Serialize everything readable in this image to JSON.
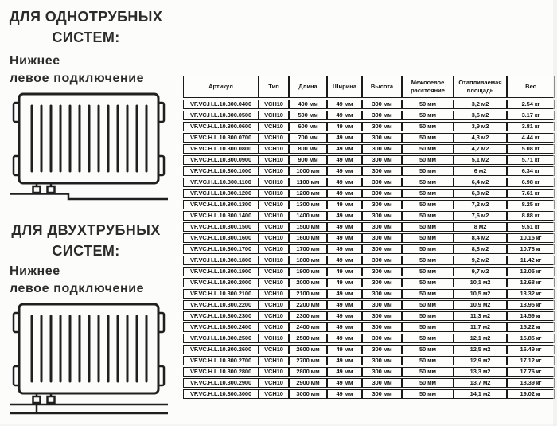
{
  "page": {
    "background": "#fcfcfb",
    "text_color": "#2b2b2b",
    "table_border_color": "#1a1a1a"
  },
  "sidebar": {
    "single_pipe": {
      "heading": "ДЛЯ ОДНОТРУБНЫХ СИСТЕМ:",
      "connection_line1": "Нижнее",
      "connection_line2": "левое подключение",
      "diagram_icon": "radiator-bottom-left-single-pipe-icon"
    },
    "two_pipe": {
      "heading": "ДЛЯ ДВУХТРУБНЫХ СИСТЕМ:",
      "connection_line1": "Нижнее",
      "connection_line2": "левое подключение",
      "diagram_icon": "radiator-bottom-left-two-pipe-icon"
    }
  },
  "table": {
    "headers": [
      "Артикул",
      "Тип",
      "Длина",
      "Ширина",
      "Высота",
      "Межосевое расстояние",
      "Отапливаемая площадь",
      "Вес"
    ],
    "rows": [
      [
        "VF.VC.H.L.10.300.0400",
        "VCH10",
        "400 мм",
        "49 мм",
        "300 мм",
        "50 мм",
        "3,2 м2",
        "2.54 кг"
      ],
      [
        "VF.VC.H.L.10.300.0500",
        "VCH10",
        "500 мм",
        "49 мм",
        "300 мм",
        "50 мм",
        "3,6 м2",
        "3.17 кг"
      ],
      [
        "VF.VC.H.L.10.300.0600",
        "VCH10",
        "600 мм",
        "49 мм",
        "300 мм",
        "50 мм",
        "3,9 м2",
        "3.81 кг"
      ],
      [
        "VF.VC.H.L.10.300.0700",
        "VCH10",
        "700 мм",
        "49 мм",
        "300 мм",
        "50 мм",
        "4,3 м2",
        "4.44 кг"
      ],
      [
        "VF.VC.H.L.10.300.0800",
        "VCH10",
        "800 мм",
        "49 мм",
        "300 мм",
        "50 мм",
        "4,7 м2",
        "5.08 кг"
      ],
      [
        "VF.VC.H.L.10.300.0900",
        "VCH10",
        "900 мм",
        "49 мм",
        "300 мм",
        "50 мм",
        "5,1 м2",
        "5.71 кг"
      ],
      [
        "VF.VC.H.L.10.300.1000",
        "VCH10",
        "1000 мм",
        "49 мм",
        "300 мм",
        "50 мм",
        "6 м2",
        "6.34 кг"
      ],
      [
        "VF.VC.H.L.10.300.1100",
        "VCH10",
        "1100 мм",
        "49 мм",
        "300 мм",
        "50 мм",
        "6,4 м2",
        "6.98 кг"
      ],
      [
        "VF.VC.H.L.10.300.1200",
        "VCH10",
        "1200 мм",
        "49 мм",
        "300 мм",
        "50 мм",
        "6,8 м2",
        "7.61 кг"
      ],
      [
        "VF.VC.H.L.10.300.1300",
        "VCH10",
        "1300 мм",
        "49 мм",
        "300 мм",
        "50 мм",
        "7,2 м2",
        "8.25 кг"
      ],
      [
        "VF.VC.H.L.10.300.1400",
        "VCH10",
        "1400 мм",
        "49 мм",
        "300 мм",
        "50 мм",
        "7,6 м2",
        "8.88 кг"
      ],
      [
        "VF.VC.H.L.10.300.1500",
        "VCH10",
        "1500 мм",
        "49 мм",
        "300 мм",
        "50 мм",
        "8 м2",
        "9.51 кг"
      ],
      [
        "VF.VC.H.L.10.300.1600",
        "VCH10",
        "1600 мм",
        "49 мм",
        "300 мм",
        "50 мм",
        "8,4 м2",
        "10.15 кг"
      ],
      [
        "VF.VC.H.L.10.300.1700",
        "VCH10",
        "1700 мм",
        "49 мм",
        "300 мм",
        "50 мм",
        "8,8 м2",
        "10.78 кг"
      ],
      [
        "VF.VC.H.L.10.300.1800",
        "VCH10",
        "1800 мм",
        "49 мм",
        "300 мм",
        "50 мм",
        "9,2 м2",
        "11.42 кг"
      ],
      [
        "VF.VC.H.L.10.300.1900",
        "VCH10",
        "1900 мм",
        "49 мм",
        "300 мм",
        "50 мм",
        "9,7 м2",
        "12.05 кг"
      ],
      [
        "VF.VC.H.L.10.300.2000",
        "VCH10",
        "2000 мм",
        "49 мм",
        "300 мм",
        "50 мм",
        "10,1 м2",
        "12.68 кг"
      ],
      [
        "VF.VC.H.L.10.300.2100",
        "VCH10",
        "2100 мм",
        "49 мм",
        "300 мм",
        "50 мм",
        "10,5 м2",
        "13.32 кг"
      ],
      [
        "VF.VC.H.L.10.300.2200",
        "VCH10",
        "2200 мм",
        "49 мм",
        "300 мм",
        "50 мм",
        "10,9 м2",
        "13.95 кг"
      ],
      [
        "VF.VC.H.L.10.300.2300",
        "VCH10",
        "2300 мм",
        "49 мм",
        "300 мм",
        "50 мм",
        "11,3 м2",
        "14.59 кг"
      ],
      [
        "VF.VC.H.L.10.300.2400",
        "VCH10",
        "2400 мм",
        "49 мм",
        "300 мм",
        "50 мм",
        "11,7 м2",
        "15.22 кг"
      ],
      [
        "VF.VC.H.L.10.300.2500",
        "VCH10",
        "2500 мм",
        "49 мм",
        "300 мм",
        "50 мм",
        "12,1 м2",
        "15.85 кг"
      ],
      [
        "VF.VC.H.L.10.300.2600",
        "VCH10",
        "2600 мм",
        "49 мм",
        "300 мм",
        "50 мм",
        "12,5 м2",
        "16.49 кг"
      ],
      [
        "VF.VC.H.L.10.300.2700",
        "VCH10",
        "2700 мм",
        "49 мм",
        "300 мм",
        "50 мм",
        "12,9 м2",
        "17.12 кг"
      ],
      [
        "VF.VC.H.L.10.300.2800",
        "VCH10",
        "2800 мм",
        "49 мм",
        "300 мм",
        "50 мм",
        "13,3 м2",
        "17.76 кг"
      ],
      [
        "VF.VC.H.L.10.300.2900",
        "VCH10",
        "2900 мм",
        "49 мм",
        "300 мм",
        "50 мм",
        "13,7 м2",
        "18.39 кг"
      ],
      [
        "VF.VC.H.L.10.300.3000",
        "VCH10",
        "3000 мм",
        "49 мм",
        "300 мм",
        "50 мм",
        "14,1 м2",
        "19.02 кг"
      ]
    ]
  }
}
